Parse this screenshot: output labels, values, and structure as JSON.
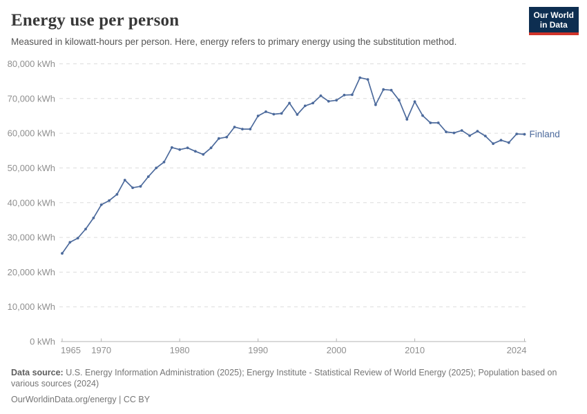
{
  "header": {
    "title": "Energy use per person",
    "subtitle": "Measured in kilowatt-hours per person. Here, energy refers to primary energy using the substitution method.",
    "logo": {
      "line1": "Our World",
      "line2": "in Data",
      "bg_color": "#0d2e51",
      "accent_color": "#d0342a"
    }
  },
  "chart_data": {
    "type": "line",
    "title": "Energy use per person",
    "subtitle": "Measured in kilowatt-hours per person. Here, energy refers to primary energy using the substitution method.",
    "unit": "kWh",
    "grid": "horizontal-dashed",
    "legend_position": "end-of-line",
    "x_range": [
      1965,
      2024
    ],
    "ylim": [
      0,
      80000
    ],
    "ytick_interval": 10000,
    "yticks": [
      {
        "value": 0,
        "label": "0 kWh"
      },
      {
        "value": 10000,
        "label": "10,000 kWh"
      },
      {
        "value": 20000,
        "label": "20,000 kWh"
      },
      {
        "value": 30000,
        "label": "30,000 kWh"
      },
      {
        "value": 40000,
        "label": "40,000 kWh"
      },
      {
        "value": 50000,
        "label": "50,000 kWh"
      },
      {
        "value": 60000,
        "label": "60,000 kWh"
      },
      {
        "value": 70000,
        "label": "70,000 kWh"
      },
      {
        "value": 80000,
        "label": "80,000 kWh"
      }
    ],
    "xticks": [
      1965,
      1970,
      1980,
      1990,
      2000,
      2010,
      2024
    ],
    "years": [
      1965,
      1966,
      1967,
      1968,
      1969,
      1970,
      1971,
      1972,
      1973,
      1974,
      1975,
      1976,
      1977,
      1978,
      1979,
      1980,
      1981,
      1982,
      1983,
      1984,
      1985,
      1986,
      1987,
      1988,
      1989,
      1990,
      1991,
      1992,
      1993,
      1994,
      1995,
      1996,
      1997,
      1998,
      1999,
      2000,
      2001,
      2002,
      2003,
      2004,
      2005,
      2006,
      2007,
      2008,
      2009,
      2010,
      2011,
      2012,
      2013,
      2014,
      2015,
      2016,
      2017,
      2018,
      2019,
      2020,
      2021,
      2022,
      2023,
      2024
    ],
    "series": [
      {
        "name": "Finland",
        "color": "#4c6a9c",
        "values": [
          25400,
          28600,
          29800,
          32400,
          35600,
          39400,
          40600,
          42400,
          46500,
          44300,
          44700,
          47500,
          50000,
          51700,
          55900,
          55300,
          55800,
          54800,
          53900,
          55800,
          58500,
          58900,
          61800,
          61200,
          61200,
          65000,
          66200,
          65500,
          65700,
          68700,
          65400,
          67900,
          68700,
          70800,
          69200,
          69500,
          71000,
          71100,
          76000,
          75500,
          68200,
          72600,
          72400,
          69500,
          64000,
          69100,
          65100,
          63000,
          63000,
          60400,
          60100,
          60800,
          59300,
          60600,
          59200,
          57000,
          58000,
          57300,
          59800,
          59700
        ]
      }
    ]
  },
  "footer": {
    "source_label": "Data source:",
    "source_text": "U.S. Energy Information Administration (2025); Energy Institute - Statistical Review of World Energy (2025); Population based on various sources (2024)",
    "link": "OurWorldinData.org/energy",
    "separator": "|",
    "license": "CC BY"
  }
}
